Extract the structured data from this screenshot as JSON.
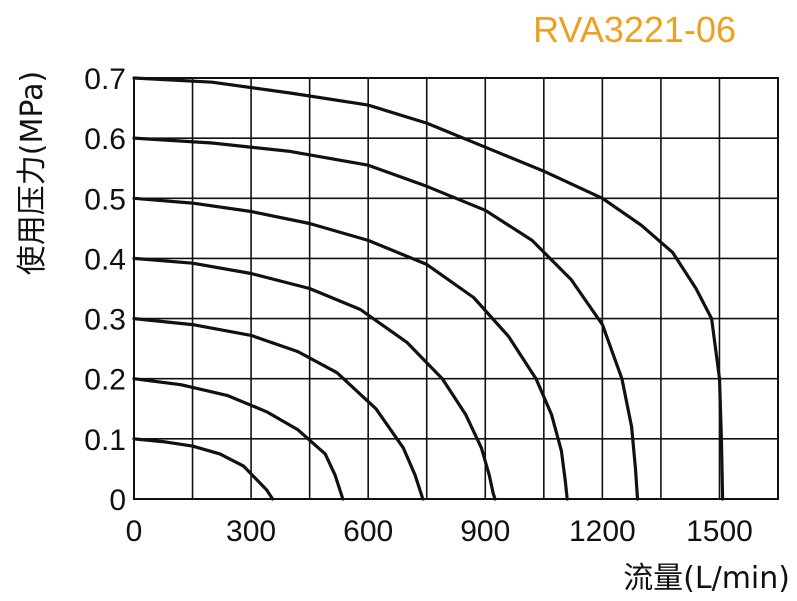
{
  "chart_data": {
    "type": "line",
    "title": "RVA3221-06",
    "xlabel": "流量(L/min)",
    "ylabel": "使用压力(MPa)",
    "xlim": [
      0,
      1650
    ],
    "ylim": [
      0,
      0.7
    ],
    "x_ticks": [
      0,
      300,
      600,
      900,
      1200,
      1500
    ],
    "y_ticks": [
      0,
      0.1,
      0.2,
      0.3,
      0.4,
      0.5,
      0.6,
      0.7
    ],
    "y_tick_labels": [
      "0",
      "0.1",
      "0.2",
      "0.3",
      "0.4",
      "0.5",
      "0.6",
      "0.7"
    ],
    "x_grid_step": 150,
    "grid": true,
    "series": [
      {
        "points": [
          [
            0,
            0.1
          ],
          [
            80,
            0.095
          ],
          [
            150,
            0.088
          ],
          [
            220,
            0.075
          ],
          [
            280,
            0.055
          ],
          [
            310,
            0.035
          ],
          [
            340,
            0.015
          ],
          [
            355,
            0
          ]
        ]
      },
      {
        "points": [
          [
            0,
            0.2
          ],
          [
            120,
            0.19
          ],
          [
            240,
            0.172
          ],
          [
            340,
            0.145
          ],
          [
            420,
            0.115
          ],
          [
            490,
            0.075
          ],
          [
            515,
            0.04
          ],
          [
            530,
            0.01
          ],
          [
            535,
            0
          ]
        ]
      },
      {
        "points": [
          [
            0,
            0.3
          ],
          [
            150,
            0.29
          ],
          [
            300,
            0.272
          ],
          [
            420,
            0.245
          ],
          [
            520,
            0.21
          ],
          [
            620,
            0.15
          ],
          [
            690,
            0.085
          ],
          [
            720,
            0.04
          ],
          [
            735,
            0.01
          ],
          [
            740,
            0
          ]
        ]
      },
      {
        "points": [
          [
            0,
            0.4
          ],
          [
            150,
            0.392
          ],
          [
            300,
            0.375
          ],
          [
            450,
            0.35
          ],
          [
            580,
            0.315
          ],
          [
            700,
            0.26
          ],
          [
            790,
            0.2
          ],
          [
            850,
            0.14
          ],
          [
            890,
            0.085
          ],
          [
            910,
            0.04
          ],
          [
            920,
            0.01
          ],
          [
            925,
            0
          ]
        ]
      },
      {
        "points": [
          [
            0,
            0.5
          ],
          [
            150,
            0.492
          ],
          [
            300,
            0.478
          ],
          [
            450,
            0.458
          ],
          [
            600,
            0.43
          ],
          [
            750,
            0.39
          ],
          [
            870,
            0.335
          ],
          [
            960,
            0.27
          ],
          [
            1030,
            0.2
          ],
          [
            1070,
            0.14
          ],
          [
            1095,
            0.08
          ],
          [
            1105,
            0.03
          ],
          [
            1110,
            0
          ]
        ]
      },
      {
        "points": [
          [
            0,
            0.6
          ],
          [
            200,
            0.592
          ],
          [
            400,
            0.578
          ],
          [
            600,
            0.555
          ],
          [
            750,
            0.52
          ],
          [
            900,
            0.48
          ],
          [
            1020,
            0.43
          ],
          [
            1120,
            0.365
          ],
          [
            1200,
            0.29
          ],
          [
            1250,
            0.2
          ],
          [
            1275,
            0.12
          ],
          [
            1285,
            0.05
          ],
          [
            1290,
            0
          ]
        ]
      },
      {
        "points": [
          [
            0,
            0.7
          ],
          [
            200,
            0.693
          ],
          [
            400,
            0.675
          ],
          [
            600,
            0.655
          ],
          [
            750,
            0.625
          ],
          [
            900,
            0.585
          ],
          [
            1050,
            0.545
          ],
          [
            1200,
            0.5
          ],
          [
            1300,
            0.455
          ],
          [
            1380,
            0.41
          ],
          [
            1440,
            0.35
          ],
          [
            1480,
            0.3
          ],
          [
            1500,
            0.2
          ],
          [
            1505,
            0.1
          ],
          [
            1508,
            0
          ]
        ]
      }
    ]
  }
}
